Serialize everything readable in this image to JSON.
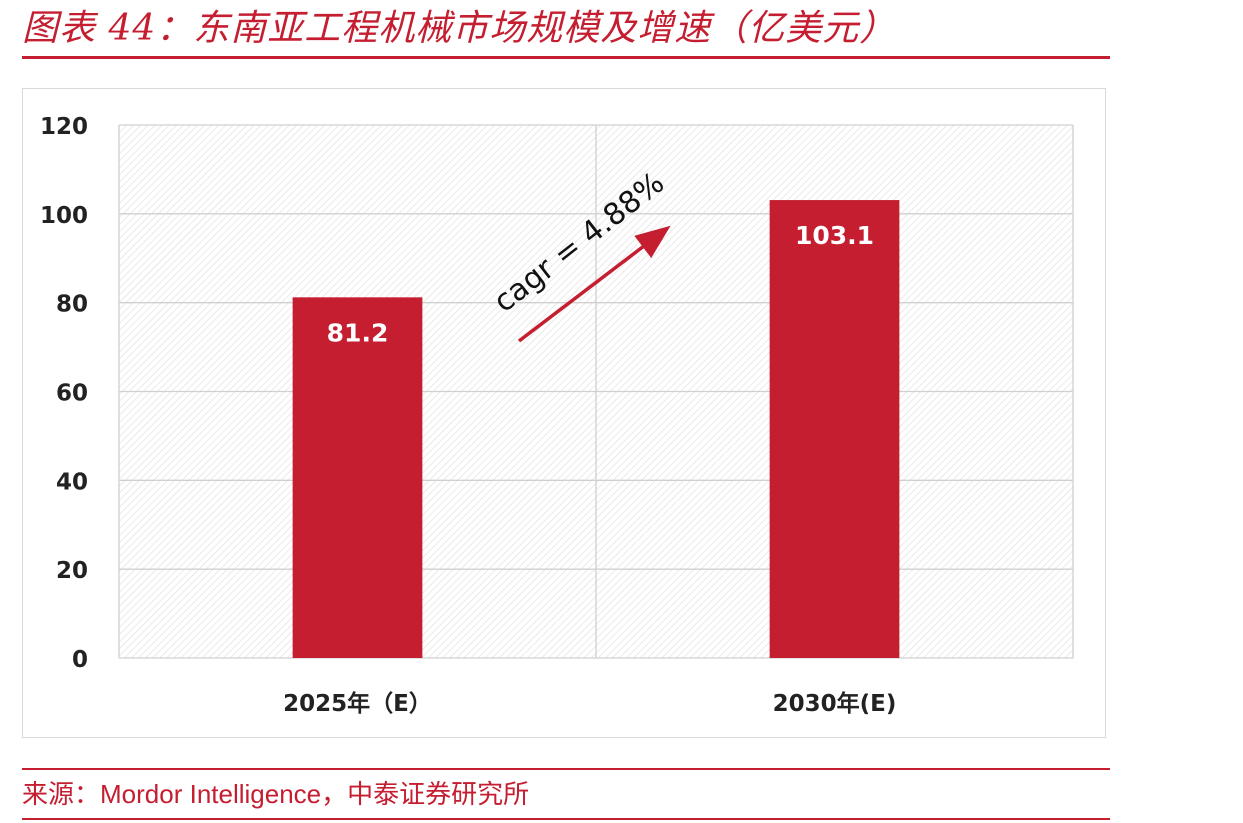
{
  "figure": {
    "title": "图表 44：东南亚工程机械市场规模及增速（亿美元）",
    "source_prefix": "来源：",
    "source_en": "Mordor Intelligence",
    "source_suffix": "，中泰证券研究所"
  },
  "chart_data": {
    "type": "bar",
    "title": "",
    "xlabel": "",
    "ylabel": "",
    "categories": [
      "2025年（E）",
      "2030年(E)"
    ],
    "values": [
      81.2,
      103.1
    ],
    "value_labels": [
      "81.2",
      "103.1"
    ],
    "ylim": [
      0,
      120
    ],
    "yticks": [
      0,
      20,
      40,
      60,
      80,
      100,
      120
    ],
    "grid": true,
    "legend": "none",
    "annotation": {
      "text": "cagr = 4.88%",
      "kind": "arrow-up-right"
    },
    "colors": {
      "bar": "#c41e30",
      "arrow": "#c41e30",
      "grid": "#d0d0d0",
      "plot_hatch": "#e1e1e1"
    }
  }
}
